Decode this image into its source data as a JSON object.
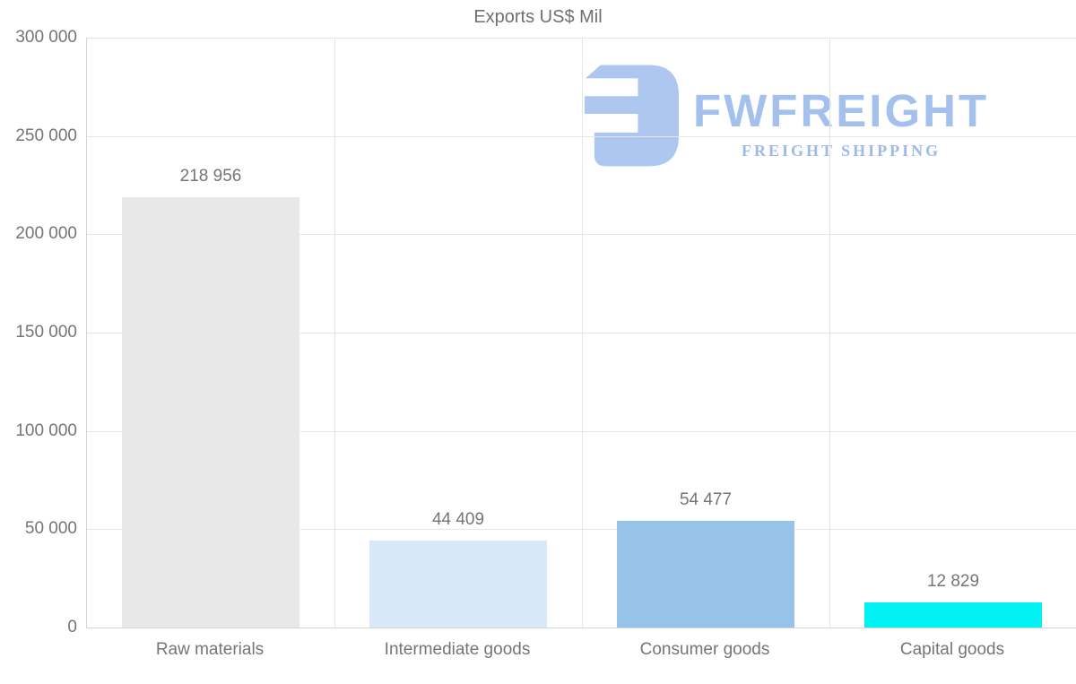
{
  "chart_data": {
    "type": "bar",
    "title": "Exports US$ Mil",
    "categories": [
      "Raw materials",
      "Intermediate goods",
      "Consumer goods",
      "Capital goods"
    ],
    "values": [
      218956,
      44409,
      54477,
      12829
    ],
    "value_labels": [
      "218 956",
      "44 409",
      "54 477",
      "12 829"
    ],
    "bar_colors": [
      "#e8e8e8",
      "#d9e8f9",
      "#98c3e9",
      "#00f2f2"
    ],
    "xlabel": "",
    "ylabel": "",
    "ylim": [
      0,
      300000
    ],
    "y_ticks": [
      0,
      50000,
      100000,
      150000,
      200000,
      250000,
      300000
    ],
    "y_tick_labels": [
      "0",
      "50 000",
      "100 000",
      "150 000",
      "200 000",
      "250 000",
      "300 000"
    ],
    "grid": true,
    "legend": "none",
    "text_color": "#757575",
    "grid_color": "#e6e6e6"
  },
  "logo": {
    "brand": "FWFREIGHT",
    "tagline": "FREIGHT SHIPPING",
    "color": "#a4c1ee"
  }
}
